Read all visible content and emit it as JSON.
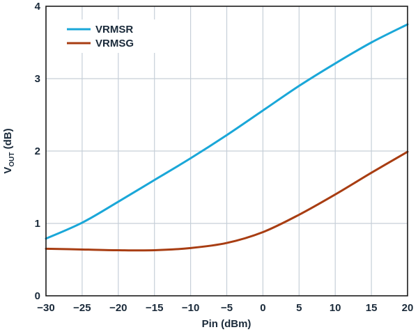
{
  "chart_data": {
    "type": "line",
    "title": "",
    "xlabel": "Pin (dBm)",
    "ylabel_main": "V",
    "ylabel_sub": "OUT",
    "ylabel_unit": " (dB)",
    "xlim": [
      -30,
      20
    ],
    "ylim": [
      0,
      4
    ],
    "xticks": [
      -30,
      -25,
      -20,
      -15,
      -10,
      -5,
      0,
      5,
      10,
      15,
      20
    ],
    "xtick_labels": [
      "−30",
      "−25",
      "−20",
      "−15",
      "−10",
      "−5",
      "0",
      "5",
      "10",
      "15",
      "20"
    ],
    "yticks": [
      0,
      1,
      2,
      3,
      4
    ],
    "ytick_labels": [
      "0",
      "1",
      "2",
      "3",
      "4"
    ],
    "grid": true,
    "legend_position": "top-left",
    "x": [
      -30,
      -25,
      -20,
      -15,
      -10,
      -5,
      0,
      5,
      10,
      15,
      20
    ],
    "series": [
      {
        "name": "VRMSR",
        "color": "#1aa7d8",
        "values": [
          0.79,
          1.01,
          1.3,
          1.6,
          1.9,
          2.22,
          2.56,
          2.9,
          3.21,
          3.5,
          3.75
        ]
      },
      {
        "name": "VRMSG",
        "color": "#a83d12",
        "values": [
          0.65,
          0.64,
          0.63,
          0.63,
          0.66,
          0.73,
          0.88,
          1.12,
          1.4,
          1.7,
          1.99
        ]
      }
    ]
  }
}
